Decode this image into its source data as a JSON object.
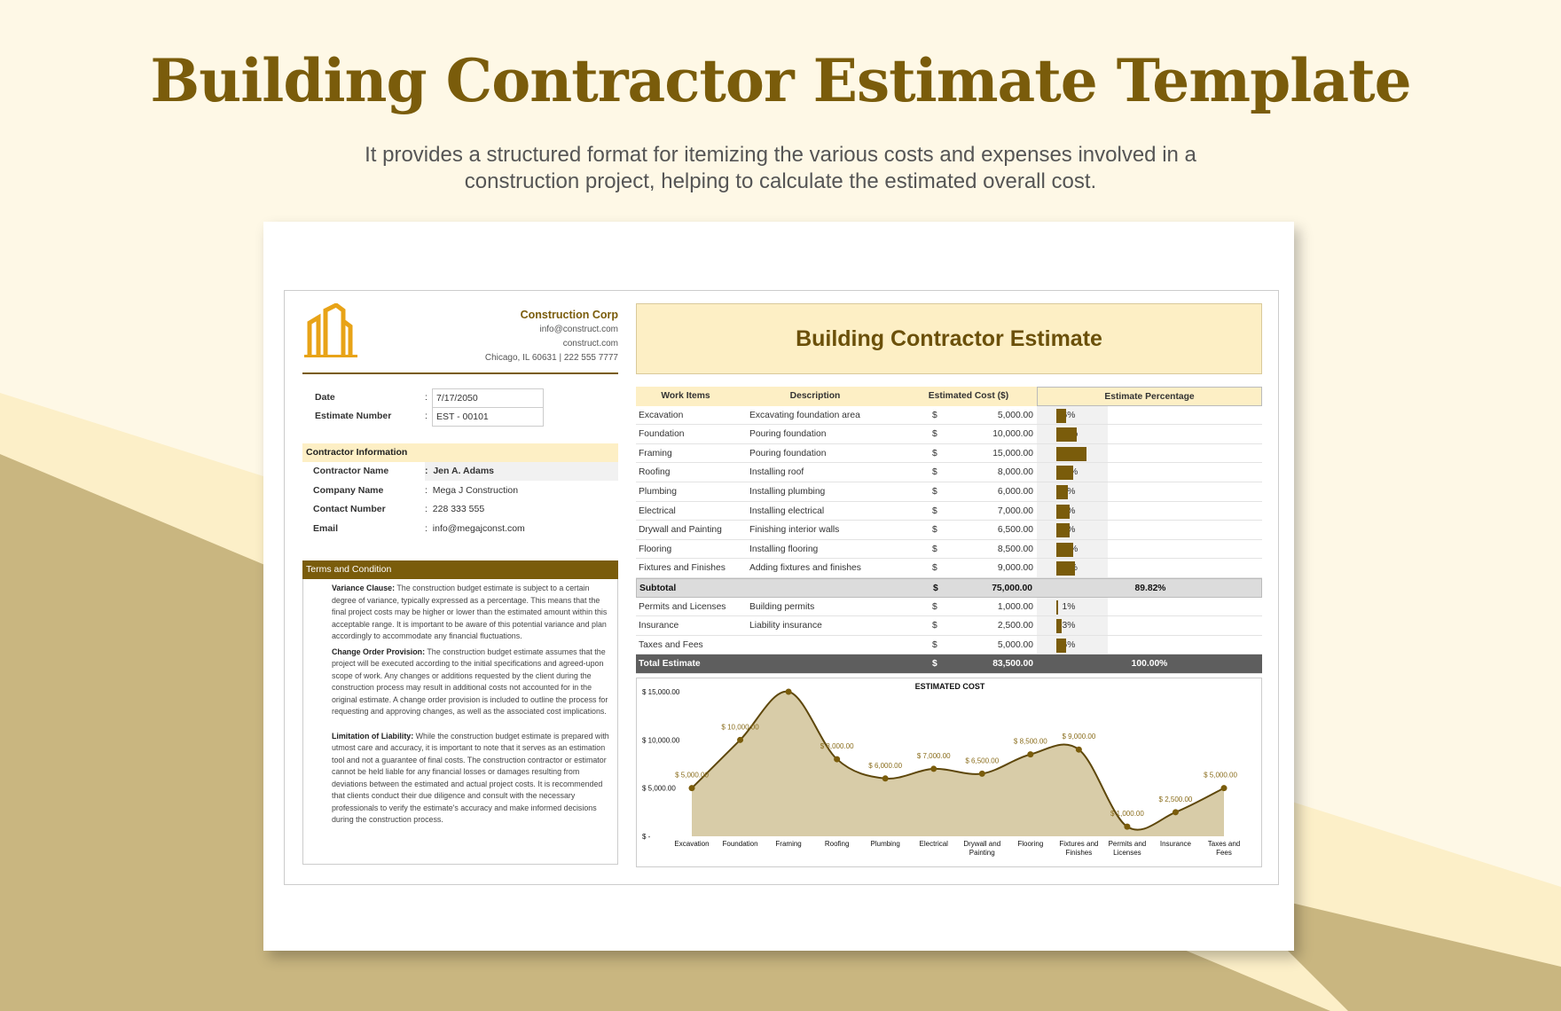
{
  "page": {
    "title": "Building Contractor Estimate Template",
    "subtitle": "It provides a structured format for itemizing the various costs and expenses involved in a construction project, helping to calculate the estimated overall cost."
  },
  "colors": {
    "brand": "#7a5c0b",
    "logo": "#e8a317",
    "header_fill": "#fdefc5",
    "chart_fill": "#d8cca8",
    "background_tan": "#c9b680"
  },
  "company": {
    "name": "Construction Corp",
    "email": "info@construct.com",
    "website": "construct.com",
    "address": "Chicago, IL 60631 | 222 555 7777",
    "logo_icon": "buildings-icon"
  },
  "doc": {
    "heading": "Building Contractor Estimate",
    "date_label": "Date",
    "date": "7/17/2050",
    "number_label": "Estimate Number",
    "number": "EST - 00101",
    "sep": ":"
  },
  "contractor": {
    "heading": "Contractor Information",
    "fields": [
      {
        "label": "Contractor Name",
        "value": "Jen A. Adams"
      },
      {
        "label": "Company Name",
        "value": "Mega J Construction"
      },
      {
        "label": "Contact Number",
        "value": "228 333 555"
      },
      {
        "label": "Email",
        "value": "info@megajconst.com"
      }
    ]
  },
  "terms": {
    "heading": "Terms and Condition",
    "items": [
      {
        "title": "Variance Clause:",
        "text": "The construction budget estimate is subject to a certain degree of variance, typically expressed as a percentage. This means that the final project costs may be higher or lower than the estimated amount within this acceptable range. It is important to be aware of this potential variance and plan accordingly to accommodate any financial fluctuations."
      },
      {
        "title": "Change Order Provision:",
        "text": "The construction budget estimate assumes that the project will be executed according to the initial specifications and agreed-upon scope of work. Any changes or additions requested by the client during the construction process may result in additional costs not accounted for in the original estimate. A change order provision is included to outline the process for requesting and approving changes, as well as the associated cost implications."
      },
      {
        "title": "Limitation of Liability:",
        "text": "While the construction budget estimate is prepared with utmost care and accuracy, it is important to note that it serves as an estimation tool and not a guarantee of final costs. The construction contractor or estimator cannot be held liable for any financial losses or damages resulting from deviations between the estimated and actual project costs. It is recommended that clients conduct their due diligence and consult with the necessary professionals to verify the estimate's accuracy and make informed decisions during the construction process."
      }
    ]
  },
  "table": {
    "headers": [
      "Work Items",
      "Description",
      "Estimated Cost ($)",
      "Estimate  Percentage"
    ],
    "currency": "$",
    "rows": [
      {
        "item": "Excavation",
        "desc": "Excavating foundation area",
        "cost": "5,000.00",
        "pct": "6%",
        "pv": 6
      },
      {
        "item": "Foundation",
        "desc": "Pouring foundation",
        "cost": "10,000.00",
        "pct": "12%",
        "pv": 12
      },
      {
        "item": "Framing",
        "desc": "Pouring foundation",
        "cost": "15,000.00",
        "pct": "18%",
        "pv": 18
      },
      {
        "item": "Roofing",
        "desc": "Installing roof",
        "cost": "8,000.00",
        "pct": "10%",
        "pv": 10
      },
      {
        "item": "Plumbing",
        "desc": "Installing plumbing",
        "cost": "6,000.00",
        "pct": "7%",
        "pv": 7
      },
      {
        "item": "Electrical",
        "desc": "Installing electrical",
        "cost": "7,000.00",
        "pct": "8%",
        "pv": 8
      },
      {
        "item": "Drywall and Painting",
        "desc": "Finishing interior walls",
        "cost": "6,500.00",
        "pct": "8%",
        "pv": 8
      },
      {
        "item": "Flooring",
        "desc": "Installing flooring",
        "cost": "8,500.00",
        "pct": "10%",
        "pv": 10
      },
      {
        "item": "Fixtures and Finishes",
        "desc": "Adding fixtures and finishes",
        "cost": "9,000.00",
        "pct": "11%",
        "pv": 11
      }
    ],
    "subtotal": {
      "label": "Subtotal",
      "cost": "75,000.00",
      "pct": "89.82%"
    },
    "extra": [
      {
        "item": "Permits and Licenses",
        "desc": "Building permits",
        "cost": "1,000.00",
        "pct": "1%",
        "pv": 1
      },
      {
        "item": "Insurance",
        "desc": "Liability insurance",
        "cost": "2,500.00",
        "pct": "3%",
        "pv": 3
      },
      {
        "item": "Taxes and Fees",
        "desc": "",
        "cost": "5,000.00",
        "pct": "6%",
        "pv": 6
      }
    ],
    "total": {
      "label": "Total Estimate",
      "cost": "83,500.00",
      "pct": "100.00%"
    }
  },
  "chart_data": {
    "type": "area",
    "title": "ESTIMATED COST",
    "categories": [
      "Excavation",
      "Foundation",
      "Framing",
      "Roofing",
      "Plumbing",
      "Electrical",
      "Drywall and Painting",
      "Flooring",
      "Fixtures and Finishes",
      "Permits and Licenses",
      "Insurance",
      "Taxes and Fees"
    ],
    "values": [
      5000,
      10000,
      15000,
      8000,
      6000,
      7000,
      6500,
      8500,
      9000,
      1000,
      2500,
      5000
    ],
    "data_labels": [
      "$ 5,000.00",
      "$ 10,000.00",
      "",
      "$ 8,000.00",
      "$ 6,000.00",
      "$ 7,000.00",
      "$ 6,500.00",
      "$ 8,500.00",
      "$ 9,000.00",
      "$ 1,000.00",
      "$ 2,500.00",
      "$ 5,000.00"
    ],
    "yticks": [
      "$ -",
      "$ 5,000.00",
      "$ 10,000.00",
      "$ 15,000.00"
    ],
    "ylim": [
      0,
      15000
    ],
    "grid": false,
    "smooth": true
  }
}
